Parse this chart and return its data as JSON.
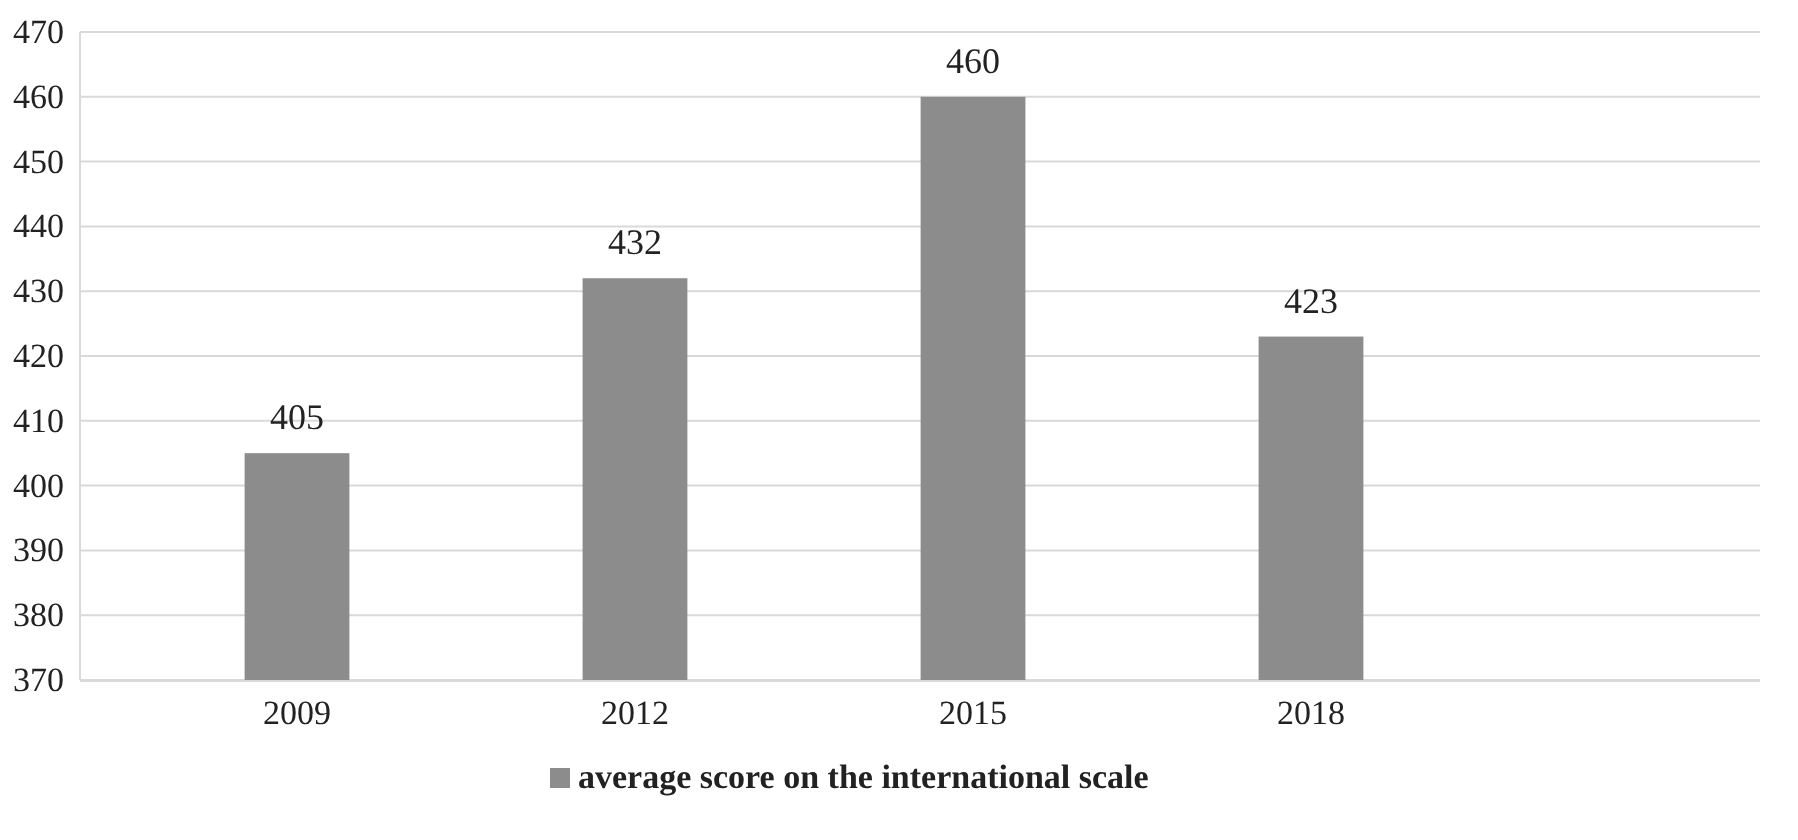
{
  "chart_data": {
    "type": "bar",
    "categories": [
      "2009",
      "2012",
      "2015",
      "2018"
    ],
    "series": [
      {
        "name": "average score on the international scale",
        "color": "#8c8c8c",
        "values": [
          405,
          432,
          460,
          423
        ]
      }
    ],
    "ylim": [
      370,
      470
    ],
    "yticks": [
      370,
      380,
      390,
      400,
      410,
      420,
      430,
      440,
      450,
      460,
      470
    ],
    "grid": "y",
    "legend": "bottom",
    "data_labels": true
  }
}
